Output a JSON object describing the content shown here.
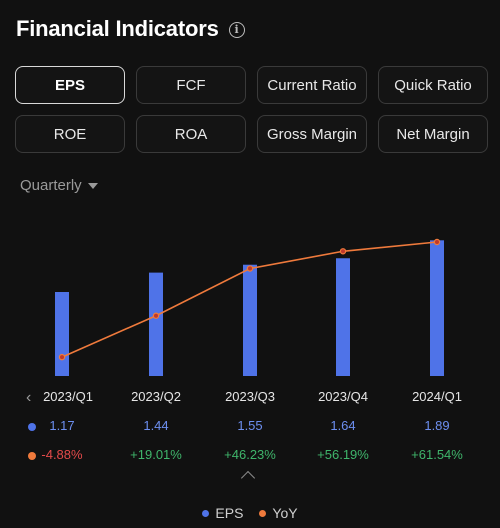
{
  "header": {
    "title": "Financial Indicators",
    "info_glyph": "i"
  },
  "tabs": [
    {
      "label": "EPS",
      "active": true
    },
    {
      "label": "FCF",
      "active": false
    },
    {
      "label": "Current Ratio",
      "active": false
    },
    {
      "label": "Quick Ratio",
      "active": false
    },
    {
      "label": "ROE",
      "active": false
    },
    {
      "label": "ROA",
      "active": false
    },
    {
      "label": "Gross Margin",
      "active": false
    },
    {
      "label": "Net Margin",
      "active": false
    }
  ],
  "period": {
    "label": "Quarterly"
  },
  "colors": {
    "eps": "#4f73e8",
    "yoy": "#ef7a3c",
    "negative": "#e34a4a",
    "positive": "#3fb56b"
  },
  "chart_data": {
    "type": "bar",
    "categories": [
      "2023/Q1",
      "2023/Q2",
      "2023/Q3",
      "2023/Q4",
      "2024/Q1"
    ],
    "series": [
      {
        "name": "EPS",
        "type": "bar",
        "values": [
          1.17,
          1.44,
          1.55,
          1.64,
          1.89
        ]
      },
      {
        "name": "YoY",
        "type": "line",
        "values": [
          -4.88,
          19.01,
          46.23,
          56.19,
          61.54
        ]
      }
    ],
    "eps_labels": [
      "1.17",
      "1.44",
      "1.55",
      "1.64",
      "1.89"
    ],
    "yoy_labels": [
      "-4.88%",
      "+19.01%",
      "+46.23%",
      "+56.19%",
      "+61.54%"
    ],
    "legend": [
      "EPS",
      "YoY"
    ]
  }
}
